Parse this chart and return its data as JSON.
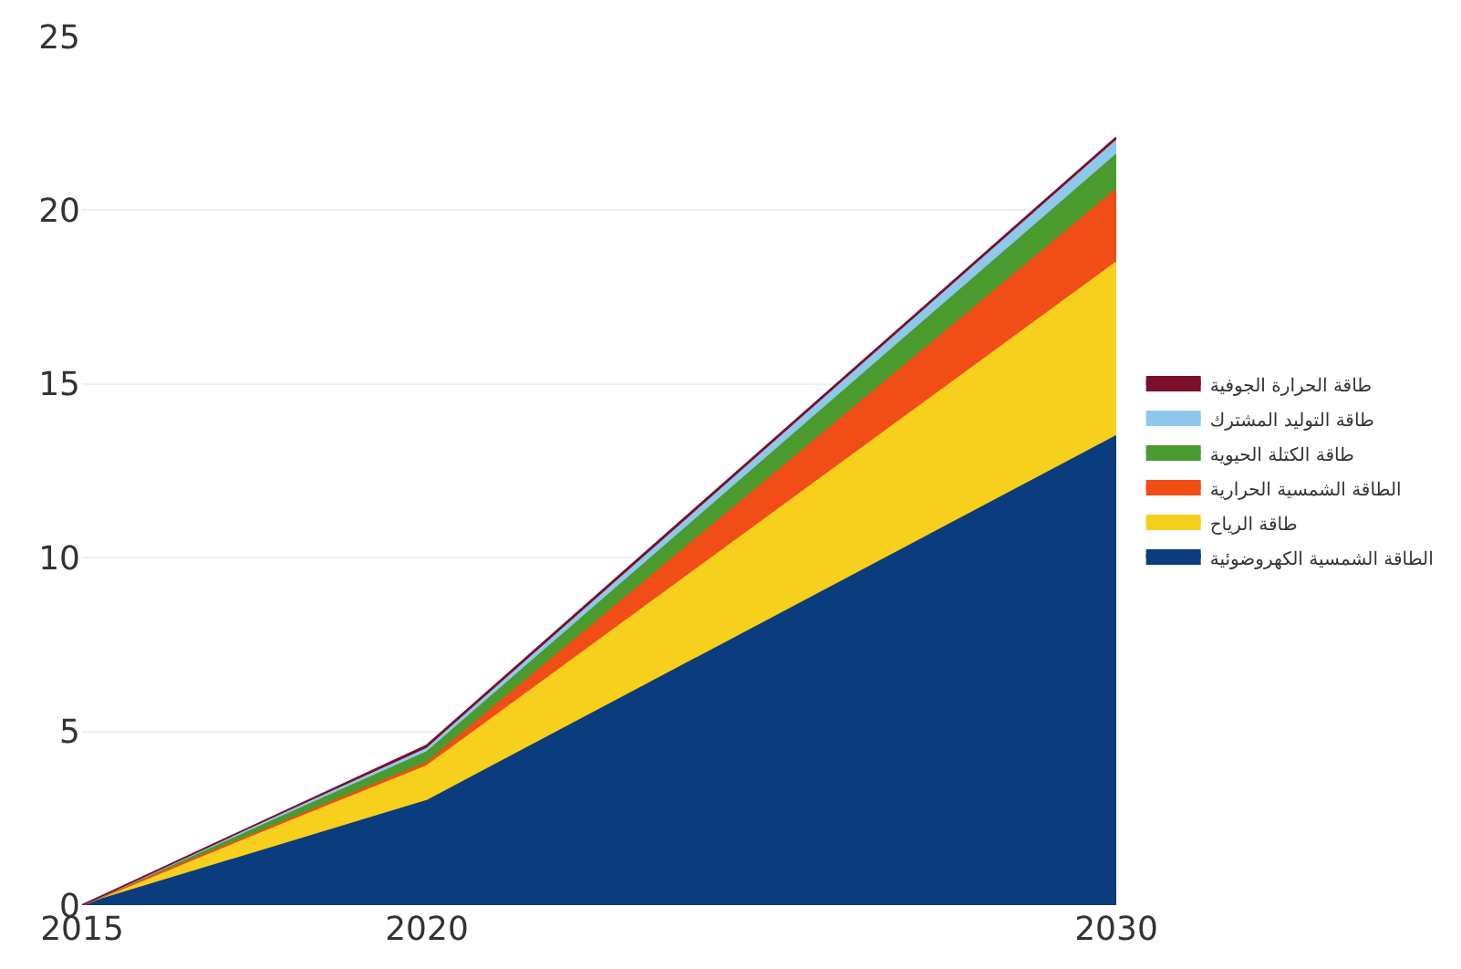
{
  "chart_data": {
    "type": "area",
    "stacked": true,
    "x": [
      2015,
      2020,
      2030
    ],
    "xlim": [
      2015,
      2030
    ],
    "xticks": [
      2015,
      2020,
      2030
    ],
    "ylim": [
      0,
      25
    ],
    "yticks": [
      0,
      5,
      10,
      15,
      20,
      25
    ],
    "grid": "y",
    "legend": "right",
    "series": [
      {
        "name": "الطاقة الشمسية الكهروضوئية",
        "color": "#0b3d7e",
        "values": [
          0,
          3.0,
          13.5
        ]
      },
      {
        "name": "طاقة الرياح",
        "color": "#f7cf1d",
        "values": [
          0,
          1.0,
          5.0
        ]
      },
      {
        "name": "الطاقة الشمسية الحرارية",
        "color": "#f04e16",
        "values": [
          0,
          0.1,
          2.1
        ]
      },
      {
        "name": "طاقة الكتلة الحيوية",
        "color": "#4a9a2e",
        "values": [
          0,
          0.3,
          1.0
        ]
      },
      {
        "name": "طاقة التوليد المشترك",
        "color": "#8ec8ea",
        "values": [
          0,
          0.1,
          0.4
        ]
      },
      {
        "name": "طاقة الحرارة الجوفية",
        "color": "#7a0f2e",
        "values": [
          0,
          0.1,
          0.1
        ]
      }
    ]
  }
}
